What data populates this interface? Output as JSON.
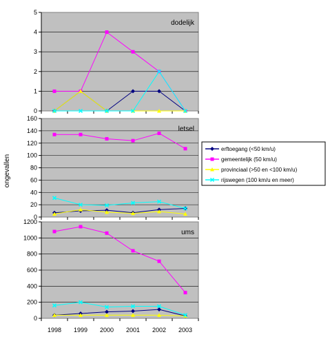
{
  "chart_data": {
    "type": "line",
    "x": [
      1998,
      1999,
      2000,
      2001,
      2002,
      2003
    ],
    "x_tick_labels": [
      "1998",
      "1999",
      "2000",
      "2001",
      "2002",
      "2003"
    ],
    "ylabel": "ongevallen",
    "legend": {
      "placement": "right",
      "entries": [
        {
          "name": "erftoegang (<50 km/u)",
          "color": "#000080",
          "marker": "diamond"
        },
        {
          "name": "gemeentelijk (50 km/u)",
          "color": "#ff00ff",
          "marker": "square"
        },
        {
          "name": "provinciaal (>50 en <100 km/u)",
          "color": "#ffff00",
          "marker": "triangle"
        },
        {
          "name": "rijswegen (100 km/u en meer)",
          "color": "#00ffff",
          "marker": "x"
        }
      ]
    },
    "panels": [
      {
        "title": "dodelijk",
        "ylim": [
          0,
          5
        ],
        "yticks": [
          0,
          1,
          2,
          3,
          4,
          5
        ],
        "series": [
          {
            "values": [
              0,
              1,
              0,
              1,
              1,
              0
            ]
          },
          {
            "values": [
              1,
              1,
              4,
              3,
              2,
              0
            ]
          },
          {
            "values": [
              0,
              1,
              0,
              0,
              0,
              0
            ]
          },
          {
            "values": [
              0,
              0,
              0,
              0,
              2,
              0
            ]
          }
        ]
      },
      {
        "title": "letsel",
        "ylim": [
          0,
          160
        ],
        "yticks": [
          0,
          20,
          40,
          60,
          80,
          100,
          120,
          140,
          160
        ],
        "series": [
          {
            "values": [
              7,
              10,
              11,
              7,
              12,
              14
            ]
          },
          {
            "values": [
              134,
              134,
              127,
              124,
              136,
              111
            ]
          },
          {
            "values": [
              5,
              12,
              8,
              6,
              9,
              5
            ]
          },
          {
            "values": [
              31,
              20,
              19,
              23,
              25,
              14
            ]
          }
        ]
      },
      {
        "title": "ums",
        "ylim": [
          0,
          1200
        ],
        "yticks": [
          0,
          200,
          400,
          600,
          800,
          1000,
          1200
        ],
        "series": [
          {
            "values": [
              40,
              60,
              80,
              90,
              110,
              30
            ]
          },
          {
            "values": [
              1080,
              1140,
              1060,
              840,
              710,
              320
            ]
          },
          {
            "values": [
              40,
              40,
              40,
              40,
              40,
              30
            ]
          },
          {
            "values": [
              160,
              200,
              140,
              150,
              150,
              40
            ]
          }
        ]
      }
    ]
  }
}
